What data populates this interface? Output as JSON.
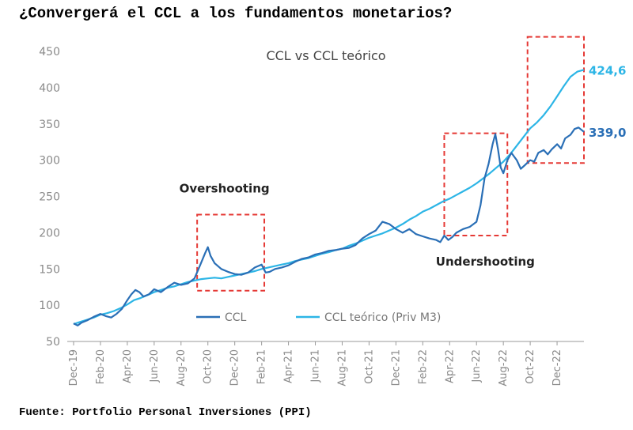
{
  "headline": "¿Convergerá el CCL a los fundamentos monetarios?",
  "source": "Fuente: Portfolio Personal Inversiones (PPI)",
  "colors": {
    "ccl": "#2a6fb6",
    "theoretical": "#2cb5e6",
    "highlight": "#e53935",
    "axis": "#9a9a9a",
    "tick_text": "#8a8a8a"
  },
  "chart_data": {
    "type": "line",
    "title": "CCL vs CCL teórico",
    "xlabel": "",
    "ylabel": "",
    "ylim": [
      50,
      450
    ],
    "yticks": [
      50,
      100,
      150,
      200,
      250,
      300,
      350,
      400,
      450
    ],
    "xlim": [
      0,
      38
    ],
    "xticks": [
      {
        "label": "Dec-19",
        "x": 0
      },
      {
        "label": "Feb-20",
        "x": 2
      },
      {
        "label": "Apr-20",
        "x": 4
      },
      {
        "label": "Jun-20",
        "x": 6
      },
      {
        "label": "Aug-20",
        "x": 8
      },
      {
        "label": "Oct-20",
        "x": 10
      },
      {
        "label": "Dec-20",
        "x": 12
      },
      {
        "label": "Feb-21",
        "x": 14
      },
      {
        "label": "Apr-21",
        "x": 16
      },
      {
        "label": "Jun-21",
        "x": 18
      },
      {
        "label": "Aug-21",
        "x": 20
      },
      {
        "label": "Oct-21",
        "x": 22
      },
      {
        "label": "Dec-21",
        "x": 24
      },
      {
        "label": "Feb-22",
        "x": 26
      },
      {
        "label": "Apr-22",
        "x": 28
      },
      {
        "label": "Jun-22",
        "x": 30
      },
      {
        "label": "Aug-22",
        "x": 32
      },
      {
        "label": "Oct-22",
        "x": 34
      },
      {
        "label": "Dec-22",
        "x": 36
      }
    ],
    "series": [
      {
        "name": "CCL",
        "end_label": "339,0",
        "points": [
          [
            0,
            75
          ],
          [
            0.3,
            72
          ],
          [
            0.6,
            76
          ],
          [
            1,
            79
          ],
          [
            1.5,
            84
          ],
          [
            2,
            88
          ],
          [
            2.4,
            85
          ],
          [
            2.8,
            83
          ],
          [
            3.2,
            88
          ],
          [
            3.6,
            95
          ],
          [
            4,
            107
          ],
          [
            4.3,
            115
          ],
          [
            4.6,
            121
          ],
          [
            4.9,
            118
          ],
          [
            5.2,
            112
          ],
          [
            5.6,
            115
          ],
          [
            6,
            122
          ],
          [
            6.5,
            118
          ],
          [
            7,
            125
          ],
          [
            7.5,
            131
          ],
          [
            8,
            128
          ],
          [
            8.5,
            130
          ],
          [
            9,
            137
          ],
          [
            9.3,
            150
          ],
          [
            9.6,
            163
          ],
          [
            9.8,
            172
          ],
          [
            10,
            180
          ],
          [
            10.2,
            168
          ],
          [
            10.5,
            158
          ],
          [
            11,
            150
          ],
          [
            11.5,
            146
          ],
          [
            12,
            143
          ],
          [
            12.5,
            142
          ],
          [
            13,
            145
          ],
          [
            13.5,
            152
          ],
          [
            14,
            156
          ],
          [
            14.3,
            145
          ],
          [
            14.6,
            146
          ],
          [
            15,
            150
          ],
          [
            15.5,
            152
          ],
          [
            16,
            155
          ],
          [
            16.5,
            160
          ],
          [
            17,
            164
          ],
          [
            17.5,
            166
          ],
          [
            18,
            170
          ],
          [
            18.5,
            172
          ],
          [
            19,
            175
          ],
          [
            19.5,
            176
          ],
          [
            20,
            178
          ],
          [
            20.5,
            179
          ],
          [
            21,
            183
          ],
          [
            21.5,
            192
          ],
          [
            22,
            198
          ],
          [
            22.5,
            203
          ],
          [
            23,
            215
          ],
          [
            23.5,
            212
          ],
          [
            24,
            205
          ],
          [
            24.5,
            200
          ],
          [
            25,
            205
          ],
          [
            25.5,
            198
          ],
          [
            26,
            195
          ],
          [
            26.5,
            192
          ],
          [
            27,
            190
          ],
          [
            27.3,
            187
          ],
          [
            27.6,
            196
          ],
          [
            27.9,
            190
          ],
          [
            28.2,
            194
          ],
          [
            28.5,
            200
          ],
          [
            29,
            205
          ],
          [
            29.5,
            208
          ],
          [
            30,
            215
          ],
          [
            30.3,
            238
          ],
          [
            30.6,
            275
          ],
          [
            30.9,
            295
          ],
          [
            31.2,
            322
          ],
          [
            31.4,
            336
          ],
          [
            31.6,
            315
          ],
          [
            31.8,
            290
          ],
          [
            32,
            282
          ],
          [
            32.3,
            300
          ],
          [
            32.6,
            310
          ],
          [
            33,
            300
          ],
          [
            33.3,
            288
          ],
          [
            33.6,
            293
          ],
          [
            34,
            300
          ],
          [
            34.3,
            298
          ],
          [
            34.6,
            310
          ],
          [
            35,
            314
          ],
          [
            35.3,
            308
          ],
          [
            35.6,
            315
          ],
          [
            36,
            322
          ],
          [
            36.3,
            316
          ],
          [
            36.6,
            330
          ],
          [
            37,
            335
          ],
          [
            37.3,
            343
          ],
          [
            37.6,
            345
          ],
          [
            38,
            339
          ]
        ]
      },
      {
        "name": "CCL teórico (Priv M3)",
        "end_label": "424,6",
        "points": [
          [
            0,
            74
          ],
          [
            0.5,
            77
          ],
          [
            1,
            80
          ],
          [
            1.5,
            83
          ],
          [
            2,
            87
          ],
          [
            2.5,
            89
          ],
          [
            3,
            92
          ],
          [
            3.5,
            96
          ],
          [
            4,
            101
          ],
          [
            4.5,
            107
          ],
          [
            5,
            110
          ],
          [
            5.5,
            114
          ],
          [
            6,
            118
          ],
          [
            6.5,
            121
          ],
          [
            7,
            124
          ],
          [
            7.5,
            126
          ],
          [
            8,
            129
          ],
          [
            8.5,
            132
          ],
          [
            9,
            134
          ],
          [
            9.5,
            136
          ],
          [
            10,
            137
          ],
          [
            10.5,
            138
          ],
          [
            11,
            137
          ],
          [
            11.5,
            139
          ],
          [
            12,
            141
          ],
          [
            12.5,
            143
          ],
          [
            13,
            145
          ],
          [
            13.5,
            147
          ],
          [
            14,
            150
          ],
          [
            14.5,
            152
          ],
          [
            15,
            154
          ],
          [
            15.5,
            156
          ],
          [
            16,
            158
          ],
          [
            16.5,
            161
          ],
          [
            17,
            163
          ],
          [
            17.5,
            165
          ],
          [
            18,
            168
          ],
          [
            18.5,
            171
          ],
          [
            19,
            173
          ],
          [
            19.5,
            176
          ],
          [
            20,
            178
          ],
          [
            20.5,
            182
          ],
          [
            21,
            185
          ],
          [
            21.5,
            189
          ],
          [
            22,
            193
          ],
          [
            22.5,
            196
          ],
          [
            23,
            199
          ],
          [
            23.5,
            203
          ],
          [
            24,
            207
          ],
          [
            24.5,
            212
          ],
          [
            25,
            218
          ],
          [
            25.5,
            223
          ],
          [
            26,
            229
          ],
          [
            26.5,
            233
          ],
          [
            27,
            238
          ],
          [
            27.5,
            243
          ],
          [
            28,
            247
          ],
          [
            28.5,
            252
          ],
          [
            29,
            257
          ],
          [
            29.5,
            262
          ],
          [
            30,
            268
          ],
          [
            30.5,
            275
          ],
          [
            31,
            282
          ],
          [
            31.5,
            290
          ],
          [
            32,
            298
          ],
          [
            32.5,
            308
          ],
          [
            33,
            320
          ],
          [
            33.5,
            332
          ],
          [
            34,
            344
          ],
          [
            34.5,
            352
          ],
          [
            35,
            362
          ],
          [
            35.5,
            374
          ],
          [
            36,
            388
          ],
          [
            36.5,
            402
          ],
          [
            37,
            415
          ],
          [
            37.5,
            422
          ],
          [
            38,
            424.6
          ]
        ]
      }
    ],
    "annotations": [
      {
        "text": "Overshooting",
        "box_x": [
          9.2,
          14.2
        ],
        "box_y": [
          120,
          225
        ]
      },
      {
        "text": "Undershooting",
        "box_x": [
          27.6,
          32.3
        ],
        "box_y": [
          196,
          337
        ]
      },
      {
        "text": "",
        "box_x": [
          33.8,
          38
        ],
        "box_y": [
          296,
          470
        ]
      }
    ],
    "legend": {
      "position": "bottom-center",
      "items": [
        "CCL",
        "CCL teórico (Priv M3)"
      ]
    }
  }
}
